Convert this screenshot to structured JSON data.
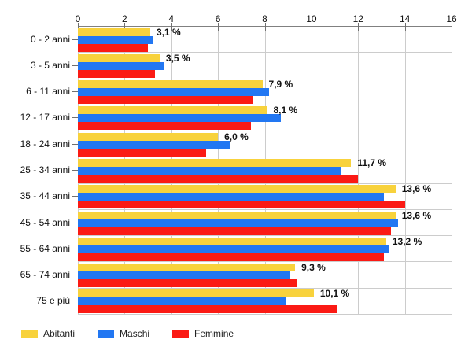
{
  "chart_data": {
    "type": "bar",
    "orientation": "horizontal",
    "title": "",
    "xlabel": "",
    "ylabel": "",
    "xlim": [
      0,
      16
    ],
    "x_ticks": [
      "0",
      "2",
      "4",
      "6",
      "8",
      "10",
      "12",
      "14",
      "16"
    ],
    "grid": true,
    "legend_position": "bottom-left",
    "categories": [
      "0 - 2 anni",
      "3 - 5 anni",
      "6 - 11 anni",
      "12 - 17 anni",
      "18 - 24 anni",
      "25 - 34 anni",
      "35 - 44 anni",
      "45 - 54 anni",
      "55 - 64 anni",
      "65 - 74 anni",
      "75 e più"
    ],
    "series": [
      {
        "name": "Abitanti",
        "color": "#F8D23C",
        "values": [
          3.1,
          3.5,
          7.9,
          8.1,
          6.0,
          11.7,
          13.6,
          13.6,
          13.2,
          9.3,
          10.1
        ]
      },
      {
        "name": "Maschi",
        "color": "#2277F2",
        "values": [
          3.2,
          3.7,
          8.2,
          8.7,
          6.5,
          11.3,
          13.1,
          13.7,
          13.3,
          9.1,
          8.9
        ]
      },
      {
        "name": "Femmine",
        "color": "#FB1A14",
        "values": [
          3.0,
          3.3,
          7.5,
          7.4,
          5.5,
          12.0,
          14.0,
          13.4,
          13.1,
          9.4,
          11.1
        ]
      }
    ],
    "value_labels": [
      "3,1 %",
      "3,5 %",
      "7,9 %",
      "8,1 %",
      "6,0 %",
      "11,7 %",
      "13,6 %",
      "13,6 %",
      "13,2 %",
      "9,3 %",
      "10,1 %"
    ],
    "colors": {
      "gridline": "#cccccc",
      "axis": "#808080",
      "text": "#111111"
    }
  }
}
